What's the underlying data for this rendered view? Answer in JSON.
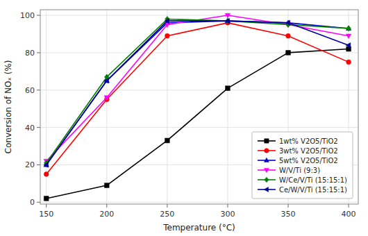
{
  "chart_data": {
    "type": "line",
    "x": [
      150,
      200,
      250,
      300,
      350,
      400
    ],
    "series": [
      {
        "name": "1wt% V2O5/TiO2",
        "color": "#000000",
        "marker": "square",
        "values": [
          2,
          9,
          33,
          61,
          80,
          82
        ]
      },
      {
        "name": "3wt% V2O5/TiO2",
        "color": "#ff0000",
        "marker": "circle",
        "values": [
          15,
          55,
          89,
          96,
          89,
          75
        ]
      },
      {
        "name": "5wt% V2O5/TiO2",
        "color": "#0000cc",
        "marker": "triangle-up",
        "values": [
          20,
          65,
          96,
          97,
          96,
          93
        ]
      },
      {
        "name": "W/V/Ti (9:3)",
        "color": "#ff00ff",
        "marker": "triangle-down",
        "values": [
          22,
          56,
          95,
          100,
          95,
          89
        ]
      },
      {
        "name": "W/Ce/V/Ti (15:15:1)",
        "color": "#008000",
        "marker": "diamond",
        "values": [
          21,
          67,
          98,
          97,
          95,
          93
        ]
      },
      {
        "name": "Ce/W/V/Ti (15:15:1)",
        "color": "#000099",
        "marker": "triangle-left",
        "values": [
          20,
          65,
          97,
          97,
          96,
          84
        ]
      }
    ],
    "x_label": "Temperature (°C)",
    "y_label": "Conversion of NOₓ (%)",
    "xlim": [
      145,
      408
    ],
    "ylim": [
      -1,
      103
    ],
    "xticks": [
      150,
      200,
      250,
      300,
      350,
      400
    ],
    "yticks": [
      0,
      20,
      40,
      60,
      80,
      100
    ],
    "grid": true,
    "legend": "lower right"
  }
}
